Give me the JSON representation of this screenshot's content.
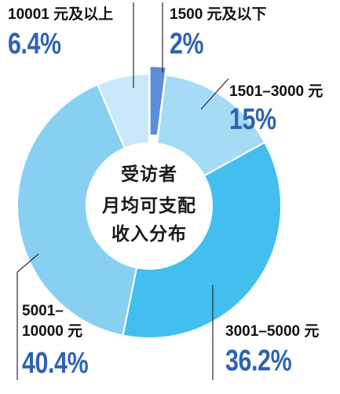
{
  "chart_data": {
    "type": "pie",
    "donut": true,
    "title_lines": [
      "受访者",
      "月均可支配",
      "收入分布"
    ],
    "slices": [
      {
        "label_lines": [
          "1500 元及以下"
        ],
        "value": 2,
        "value_label": "2%",
        "color": "#5b8ed6",
        "exploded": true
      },
      {
        "label_lines": [
          "1501–3000 元"
        ],
        "value": 15,
        "value_label": "15%",
        "color": "#a6dbf5"
      },
      {
        "label_lines": [
          "3001–5000 元"
        ],
        "value": 36.2,
        "value_label": "36.2%",
        "color": "#42bfee"
      },
      {
        "label_lines": [
          "5001–",
          "10000 元"
        ],
        "value": 40.4,
        "value_label": "40.4%",
        "color": "#88d0f2"
      },
      {
        "label_lines": [
          "10001 元及以上"
        ],
        "value": 6.4,
        "value_label": "6.4%",
        "color": "#c8e9f9"
      }
    ]
  },
  "colors": {
    "background": "#ffffff",
    "category_label": "#111111",
    "value_label": "#2f62b3",
    "title": "#1a1a1a",
    "slice_separator": "#ffffff",
    "leader_line": "#2a2a2a"
  }
}
